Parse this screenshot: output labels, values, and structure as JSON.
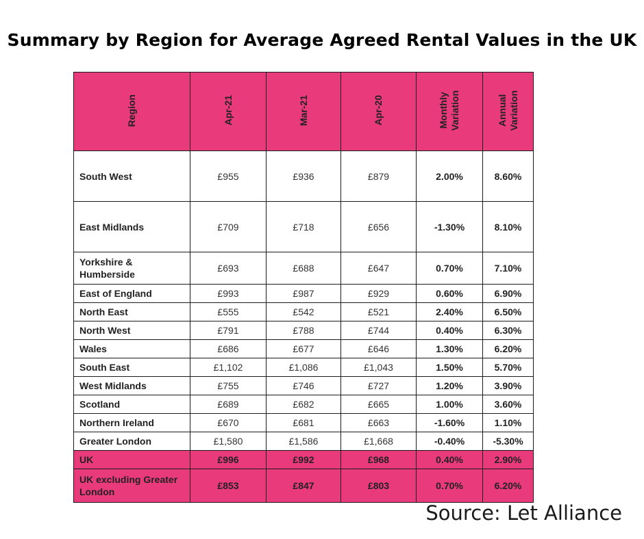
{
  "title": "Summary by Region for Average Agreed Rental Values in the UK",
  "colors": {
    "header_bg": "#e93a7b",
    "border": "#1a1a1a"
  },
  "headers": {
    "region": "Region",
    "apr21": "Apr-21",
    "mar21": "Mar-21",
    "apr20": "Apr-20",
    "monthly": "Monthly\nVariation",
    "annual": "Annual\nVariation"
  },
  "rows": [
    {
      "region": "South West",
      "apr21": "£955",
      "mar21": "£936",
      "apr20": "£879",
      "monthly": "2.00%",
      "annual": "8.60%"
    },
    {
      "region": "East Midlands",
      "apr21": "£709",
      "mar21": "£718",
      "apr20": "£656",
      "monthly": "-1.30%",
      "annual": "8.10%"
    },
    {
      "region": "Yorkshire & Humberside",
      "apr21": "£693",
      "mar21": "£688",
      "apr20": "£647",
      "monthly": "0.70%",
      "annual": "7.10%"
    },
    {
      "region": "East of England",
      "apr21": "£993",
      "mar21": "£987",
      "apr20": "£929",
      "monthly": "0.60%",
      "annual": "6.90%"
    },
    {
      "region": "North East",
      "apr21": "£555",
      "mar21": "£542",
      "apr20": "£521",
      "monthly": "2.40%",
      "annual": "6.50%"
    },
    {
      "region": "North West",
      "apr21": "£791",
      "mar21": "£788",
      "apr20": "£744",
      "monthly": "0.40%",
      "annual": "6.30%"
    },
    {
      "region": "Wales",
      "apr21": "£686",
      "mar21": "£677",
      "apr20": "£646",
      "monthly": "1.30%",
      "annual": "6.20%"
    },
    {
      "region": "South East",
      "apr21": "£1,102",
      "mar21": "£1,086",
      "apr20": "£1,043",
      "monthly": "1.50%",
      "annual": "5.70%"
    },
    {
      "region": "West Midlands",
      "apr21": "£755",
      "mar21": "£746",
      "apr20": "£727",
      "monthly": "1.20%",
      "annual": "3.90%"
    },
    {
      "region": "Scotland",
      "apr21": "£689",
      "mar21": "£682",
      "apr20": "£665",
      "monthly": "1.00%",
      "annual": "3.60%"
    },
    {
      "region": "Northern Ireland",
      "apr21": "£670",
      "mar21": "£681",
      "apr20": "£663",
      "monthly": "-1.60%",
      "annual": "1.10%"
    },
    {
      "region": "Greater London",
      "apr21": "£1,580",
      "mar21": "£1,586",
      "apr20": "£1,668",
      "monthly": "-0.40%",
      "annual": "-5.30%"
    }
  ],
  "totals": [
    {
      "region": "UK",
      "apr21": "£996",
      "mar21": "£992",
      "apr20": "£968",
      "monthly": "0.40%",
      "annual": "2.90%"
    },
    {
      "region": "UK excluding Greater London",
      "apr21": "£853",
      "mar21": "£847",
      "apr20": "£803",
      "monthly": "0.70%",
      "annual": "6.20%"
    }
  ],
  "source": "Source: Let Alliance"
}
